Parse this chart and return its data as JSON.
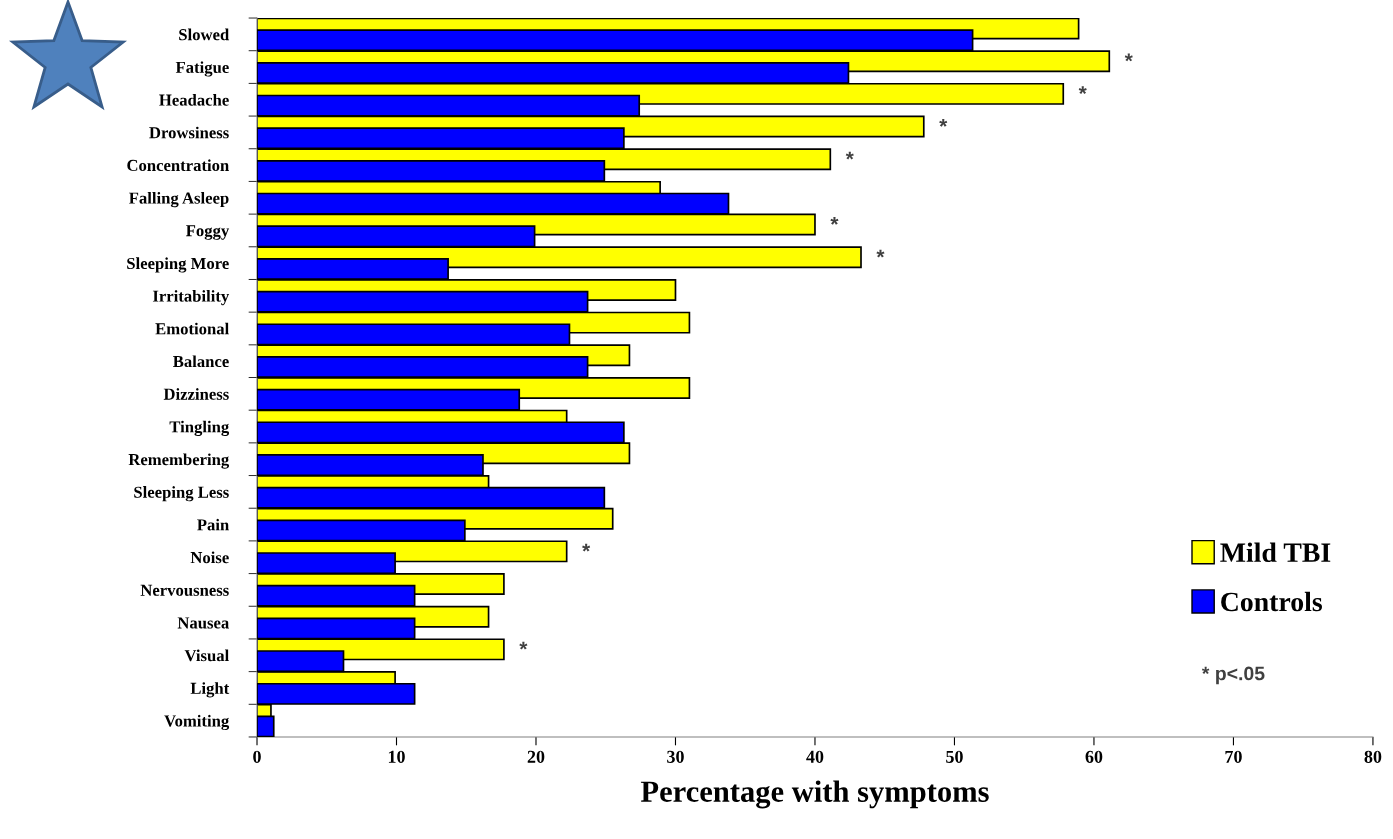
{
  "chart_data": {
    "type": "bar",
    "orientation": "horizontal",
    "xlabel": "Percentage with symptoms",
    "categories": [
      "Slowed",
      "Fatigue",
      "Headache",
      "Drowsiness",
      "Concentration",
      "Falling Asleep",
      "Foggy",
      "Sleeping More",
      "Irritability",
      "Emotional",
      "Balance",
      "Dizziness",
      "Tingling",
      "Remembering",
      "Sleeping Less",
      "Pain",
      "Noise",
      "Nervousness",
      "Nausea",
      "Visual",
      "Light",
      "Vomiting"
    ],
    "series": [
      {
        "name": "Mild TBI",
        "color": "#ffff00",
        "values": [
          58.9,
          61.1,
          57.8,
          47.8,
          41.1,
          28.9,
          40.0,
          43.3,
          30.0,
          31.0,
          26.7,
          31.0,
          22.2,
          26.7,
          16.6,
          25.5,
          22.2,
          17.7,
          16.6,
          17.7,
          9.9,
          1.0
        ]
      },
      {
        "name": "Controls",
        "color": "#0000ff",
        "values": [
          51.3,
          42.4,
          27.4,
          26.3,
          24.9,
          33.8,
          19.9,
          13.7,
          23.7,
          22.4,
          23.7,
          18.8,
          26.3,
          16.2,
          24.9,
          14.9,
          9.9,
          11.3,
          11.3,
          6.2,
          11.3,
          1.2
        ]
      }
    ],
    "xlim": [
      0,
      80
    ],
    "xticks": [
      0,
      10,
      20,
      30,
      40,
      50,
      60,
      70,
      80
    ],
    "grid": false,
    "legend": "right",
    "annotations": [
      {
        "text": "*",
        "x": 61.1,
        "y": "Fatigue"
      },
      {
        "text": "*",
        "x": 57.8,
        "y": "Headache"
      },
      {
        "text": "*",
        "x": 47.8,
        "y": "Drowsiness"
      },
      {
        "text": "*",
        "x": 41.1,
        "y": "Concentration"
      },
      {
        "text": "*",
        "x": 40.0,
        "y": "Foggy"
      },
      {
        "text": "*",
        "x": 43.3,
        "y": "Sleeping More"
      },
      {
        "text": "*",
        "x": 22.2,
        "y": "Noise"
      },
      {
        "text": "*",
        "x": 17.7,
        "y": "Visual"
      },
      "* p<.05"
    ]
  }
}
